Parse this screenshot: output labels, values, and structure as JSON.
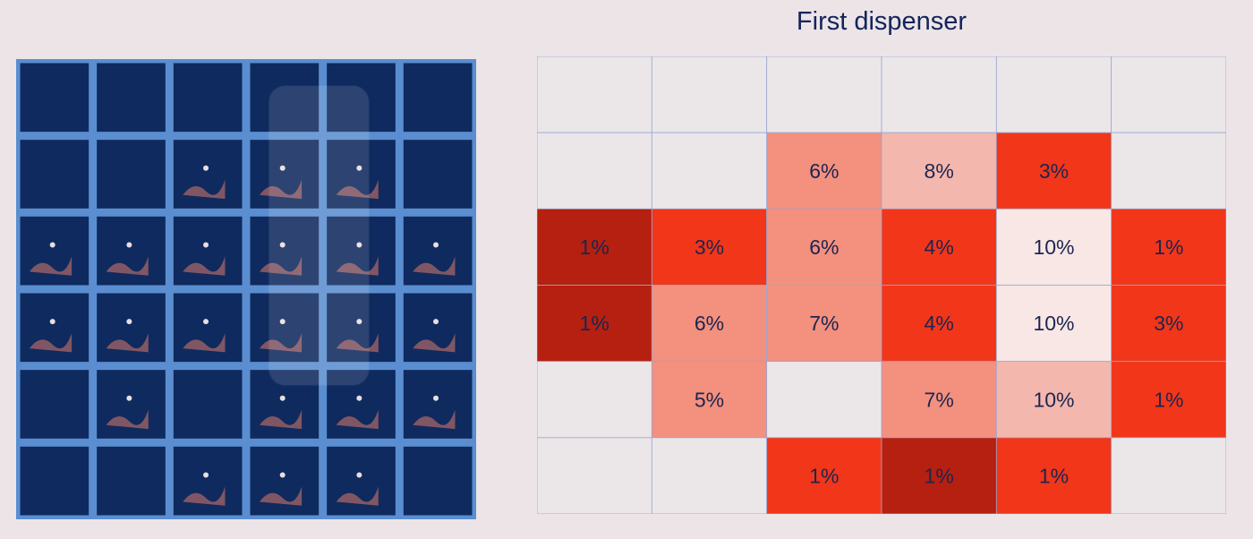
{
  "chart_data": {
    "type": "heatmap",
    "title": "First dispenser",
    "rows": 6,
    "cols": 6,
    "values": [
      [
        null,
        null,
        null,
        null,
        null,
        null
      ],
      [
        null,
        null,
        6,
        8,
        3,
        null
      ],
      [
        1,
        3,
        6,
        4,
        10,
        1
      ],
      [
        1,
        6,
        7,
        4,
        10,
        3
      ],
      [
        null,
        5,
        null,
        7,
        10,
        1
      ],
      [
        null,
        null,
        1,
        1,
        1,
        null
      ]
    ],
    "labels": [
      [
        "",
        "",
        "",
        "",
        "",
        ""
      ],
      [
        "",
        "",
        "6%",
        "8%",
        "3%",
        ""
      ],
      [
        "1%",
        "3%",
        "6%",
        "4%",
        "10%",
        "1%"
      ],
      [
        "1%",
        "6%",
        "7%",
        "4%",
        "10%",
        "3%"
      ],
      [
        "",
        "5%",
        "",
        "7%",
        "10%",
        "1%"
      ],
      [
        "",
        "",
        "1%",
        "1%",
        "1%",
        ""
      ]
    ],
    "cell_colors": [
      [
        "#ebe7e9",
        "#ebe7e9",
        "#ebe7e9",
        "#ebe7e9",
        "#ebe7e9",
        "#ebe7e9"
      ],
      [
        "#ebe7e9",
        "#ebe7e9",
        "#f3907e",
        "#f4b7ad",
        "#f1361a",
        "#ebe7e9"
      ],
      [
        "#b52010",
        "#f1361a",
        "#f3907e",
        "#f1361a",
        "#f8e7e5",
        "#f1361a"
      ],
      [
        "#b52010",
        "#f3907e",
        "#f3907e",
        "#f1361a",
        "#f8e7e5",
        "#f1361a"
      ],
      [
        "#ebe7e9",
        "#f3907e",
        "#ebe7e9",
        "#f3907e",
        "#f4b7ad",
        "#f1361a"
      ],
      [
        "#ebe7e9",
        "#ebe7e9",
        "#f1361a",
        "#b52010",
        "#f1361a",
        "#ebe7e9"
      ]
    ]
  },
  "photo": {
    "grid_rows": 6,
    "grid_cols": 6,
    "colors": {
      "cell": "#0f2a5e",
      "grid": "#5b8ed0",
      "liquid": "#e07a6a",
      "highlight": "#fff2f0"
    }
  },
  "colors": {
    "text": "#1c2550",
    "grid_line": "#9aa6d1",
    "background": "#ece4e7"
  }
}
